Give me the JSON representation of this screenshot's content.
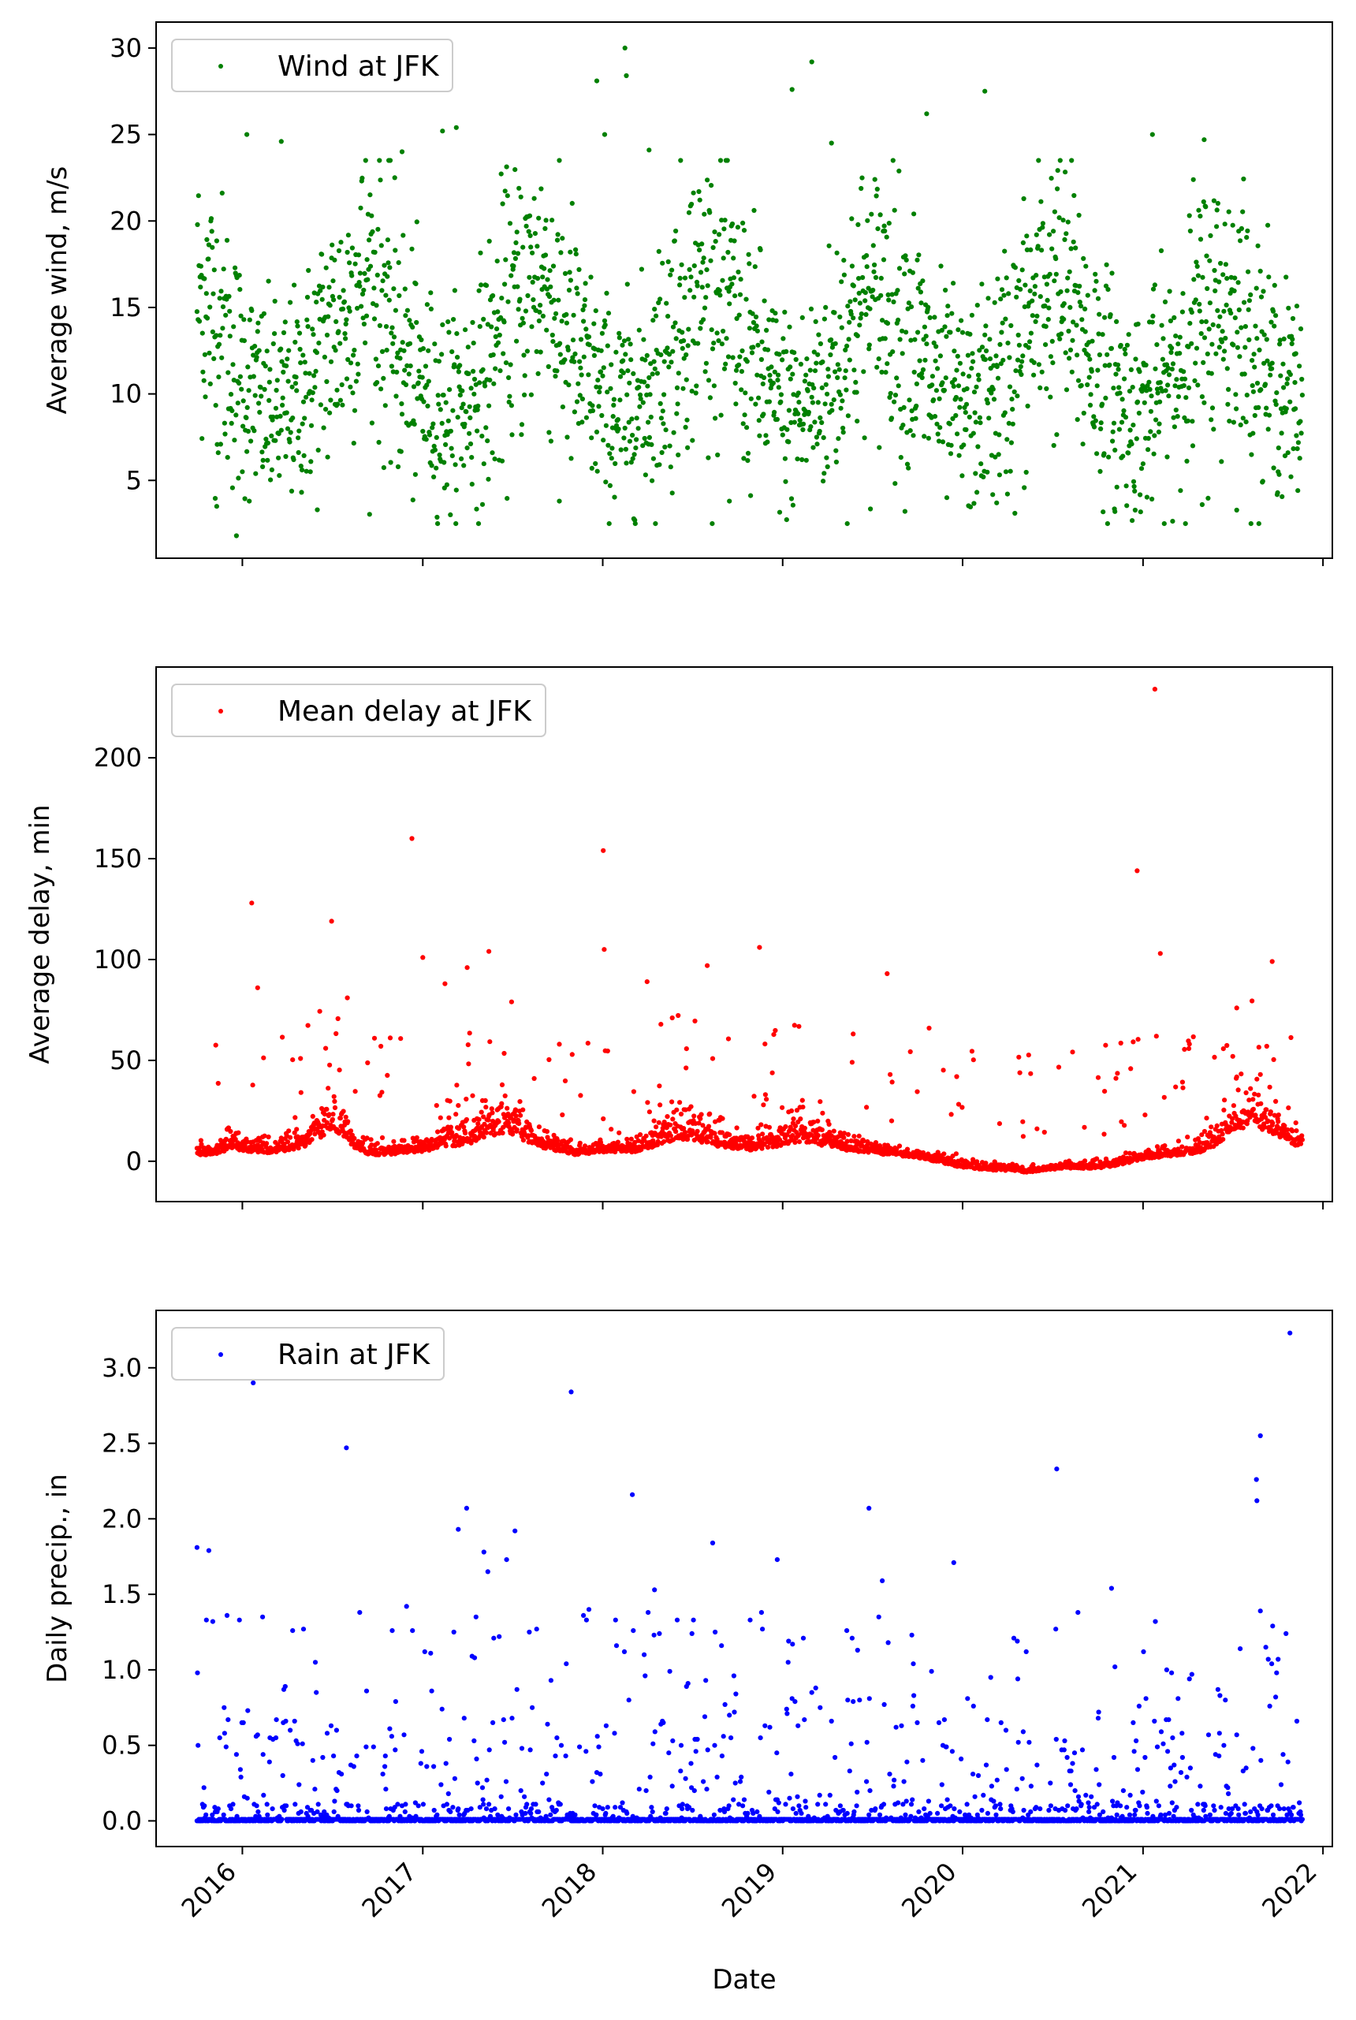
{
  "chart_data": [
    {
      "type": "scatter",
      "ylabel": "Average wind, m/s",
      "xlabel": "",
      "yticks": [
        5,
        10,
        15,
        20,
        25,
        30
      ],
      "ylim": [
        0.5,
        31.5
      ],
      "xlim": [
        "2015-07-10",
        "2022-01-20"
      ],
      "xticks": [
        "2016-01-01",
        "2017-01-01",
        "2018-01-01",
        "2019-01-01",
        "2020-01-01",
        "2021-01-01",
        "2022-01-01"
      ],
      "show_xticklabels": false,
      "grid": false,
      "legend_position": "upper-left",
      "series": [
        {
          "name": "Wind at JFK",
          "color": "#008000",
          "baseline": [
            16,
            15,
            13,
            11,
            10,
            9,
            9,
            10,
            11,
            13,
            14,
            16,
            17,
            15,
            13,
            11,
            10,
            9,
            9,
            10,
            11,
            13,
            15,
            16,
            17,
            15,
            13,
            11,
            10,
            9,
            9,
            10,
            11,
            13,
            15,
            16,
            16,
            15,
            13,
            12,
            10,
            9,
            9,
            10,
            11,
            13,
            15,
            15,
            16,
            14,
            13,
            11,
            10,
            9,
            9,
            10,
            11,
            12,
            14,
            16,
            16,
            15,
            13,
            11,
            10,
            9,
            9,
            10,
            11,
            13,
            14,
            15,
            15,
            14,
            12,
            11,
            10,
            9
          ],
          "spread": [
            4,
            4,
            4,
            3.5,
            3,
            3,
            3,
            3,
            3.5,
            4,
            4,
            4,
            4,
            4,
            4,
            3.5,
            3,
            3,
            3,
            3,
            3.5,
            4,
            4,
            4,
            4,
            4,
            4,
            3.5,
            3,
            3,
            3,
            3,
            3.5,
            4,
            4,
            4,
            4,
            4,
            4,
            3.5,
            3,
            3,
            3,
            3,
            3.5,
            4,
            4,
            4,
            4,
            4,
            4,
            3.5,
            3,
            3,
            3,
            3,
            3.5,
            4,
            4,
            4,
            4,
            4,
            4,
            3.5,
            3,
            3,
            3,
            3,
            3.5,
            4,
            4,
            4,
            4,
            4,
            3.5,
            3,
            3,
            3
          ],
          "outliers": [
            {
              "x": "2015-11-10",
              "y": 3.5
            },
            {
              "x": "2016-01-10",
              "y": 25.0
            },
            {
              "x": "2016-03-20",
              "y": 24.6
            },
            {
              "x": "2016-11-20",
              "y": 24.0
            },
            {
              "x": "2017-02-10",
              "y": 25.2
            },
            {
              "x": "2017-03-10",
              "y": 25.4
            },
            {
              "x": "2017-10-05",
              "y": 3.8
            },
            {
              "x": "2017-12-20",
              "y": 28.1
            },
            {
              "x": "2018-01-05",
              "y": 25.0
            },
            {
              "x": "2018-02-15",
              "y": 30.0
            },
            {
              "x": "2018-02-18",
              "y": 28.4
            },
            {
              "x": "2018-04-05",
              "y": 24.1
            },
            {
              "x": "2018-09-15",
              "y": 3.8
            },
            {
              "x": "2019-01-20",
              "y": 27.6
            },
            {
              "x": "2019-03-01",
              "y": 29.2
            },
            {
              "x": "2019-04-10",
              "y": 24.5
            },
            {
              "x": "2019-10-20",
              "y": 26.2
            },
            {
              "x": "2020-02-15",
              "y": 27.5
            },
            {
              "x": "2020-03-10",
              "y": 3.7
            },
            {
              "x": "2020-11-05",
              "y": 3.2
            },
            {
              "x": "2021-01-20",
              "y": 25.0
            },
            {
              "x": "2021-05-05",
              "y": 24.7
            },
            {
              "x": "2021-05-01",
              "y": 3.6
            },
            {
              "x": "2015-12-20",
              "y": 1.8
            }
          ]
        }
      ]
    },
    {
      "type": "scatter",
      "ylabel": "Average delay, min",
      "xlabel": "",
      "yticks": [
        0,
        50,
        100,
        150,
        200
      ],
      "ylim": [
        -20,
        245
      ],
      "xlim": [
        "2015-07-10",
        "2022-01-20"
      ],
      "xticks": [
        "2016-01-01",
        "2017-01-01",
        "2018-01-01",
        "2019-01-01",
        "2020-01-01",
        "2021-01-01",
        "2022-01-01"
      ],
      "show_xticklabels": false,
      "grid": false,
      "legend_position": "upper-left",
      "series": [
        {
          "name": "Mean delay at JFK",
          "color": "#ff0000",
          "baseline": [
            4,
            4,
            8,
            6,
            5,
            6,
            8,
            14,
            18,
            9,
            4,
            4,
            5,
            6,
            8,
            10,
            12,
            16,
            18,
            12,
            8,
            6,
            4,
            5,
            6,
            5,
            8,
            10,
            14,
            12,
            10,
            8,
            7,
            8,
            10,
            12,
            10,
            8,
            6,
            5,
            4,
            3,
            2,
            0,
            -2,
            -3,
            -4,
            -4,
            -5,
            -4,
            -3,
            -3,
            -3,
            -2,
            0,
            2,
            3,
            4,
            5,
            10,
            18,
            20,
            18,
            12,
            8
          ],
          "spread": [
            3,
            3,
            6,
            4,
            3,
            4,
            6,
            10,
            12,
            6,
            3,
            3,
            3,
            4,
            6,
            8,
            10,
            12,
            12,
            8,
            6,
            4,
            3,
            3,
            4,
            4,
            6,
            8,
            10,
            9,
            8,
            6,
            5,
            6,
            8,
            9,
            8,
            6,
            4,
            3,
            3,
            2,
            2,
            2,
            2,
            2,
            2,
            2,
            2,
            2,
            2,
            2,
            2,
            2,
            2,
            2,
            3,
            3,
            4,
            7,
            10,
            12,
            10,
            7,
            5
          ],
          "outliers": [
            {
              "x": "2016-01-20",
              "y": 128
            },
            {
              "x": "2016-02-01",
              "y": 86
            },
            {
              "x": "2016-06-30",
              "y": 119
            },
            {
              "x": "2016-08-01",
              "y": 81
            },
            {
              "x": "2016-12-10",
              "y": 160
            },
            {
              "x": "2017-01-01",
              "y": 101
            },
            {
              "x": "2017-02-15",
              "y": 88
            },
            {
              "x": "2017-04-01",
              "y": 96
            },
            {
              "x": "2017-05-15",
              "y": 104
            },
            {
              "x": "2017-06-30",
              "y": 79
            },
            {
              "x": "2017-10-05",
              "y": 58
            },
            {
              "x": "2018-01-02",
              "y": 154
            },
            {
              "x": "2018-01-04",
              "y": 105
            },
            {
              "x": "2018-04-01",
              "y": 89
            },
            {
              "x": "2018-08-01",
              "y": 97
            },
            {
              "x": "2018-11-15",
              "y": 106
            },
            {
              "x": "2019-08-01",
              "y": 93
            },
            {
              "x": "2019-10-25",
              "y": 66
            },
            {
              "x": "2020-12-20",
              "y": 144
            },
            {
              "x": "2021-01-25",
              "y": 234
            },
            {
              "x": "2021-02-05",
              "y": 103
            },
            {
              "x": "2021-01-28",
              "y": 62
            },
            {
              "x": "2021-09-20",
              "y": 99
            },
            {
              "x": "2021-07-10",
              "y": 76
            }
          ]
        }
      ]
    },
    {
      "type": "scatter",
      "ylabel": "Daily precip., in",
      "xlabel": "Date",
      "yticks": [
        0.0,
        0.5,
        1.0,
        1.5,
        2.0,
        2.5,
        3.0
      ],
      "ytick_labels": [
        "0.0",
        "0.5",
        "1.0",
        "1.5",
        "2.0",
        "2.5",
        "3.0"
      ],
      "ylim": [
        -0.17,
        3.38
      ],
      "xlim": [
        "2015-07-10",
        "2022-01-20"
      ],
      "xticks": [
        "2016-01-01",
        "2017-01-01",
        "2018-01-01",
        "2019-01-01",
        "2020-01-01",
        "2021-01-01",
        "2022-01-01"
      ],
      "xtick_labels": [
        "2016",
        "2017",
        "2018",
        "2019",
        "2020",
        "2021",
        "2022"
      ],
      "show_xticklabels": true,
      "grid": false,
      "legend_position": "upper-left",
      "series": [
        {
          "name": "Rain at JFK",
          "color": "#0000ff",
          "outliers": [
            {
              "x": "2015-10-01",
              "y": 1.81
            },
            {
              "x": "2015-10-25",
              "y": 1.79
            },
            {
              "x": "2016-01-23",
              "y": 2.9
            },
            {
              "x": "2016-07-30",
              "y": 2.47
            },
            {
              "x": "2016-11-29",
              "y": 1.42
            },
            {
              "x": "2017-03-14",
              "y": 1.93
            },
            {
              "x": "2017-03-31",
              "y": 2.07
            },
            {
              "x": "2017-05-05",
              "y": 1.78
            },
            {
              "x": "2017-05-13",
              "y": 1.65
            },
            {
              "x": "2017-06-20",
              "y": 1.73
            },
            {
              "x": "2017-07-07",
              "y": 1.92
            },
            {
              "x": "2017-10-29",
              "y": 2.84
            },
            {
              "x": "2018-03-02",
              "y": 2.16
            },
            {
              "x": "2018-04-16",
              "y": 1.53
            },
            {
              "x": "2018-08-12",
              "y": 1.84
            },
            {
              "x": "2018-12-21",
              "y": 1.73
            },
            {
              "x": "2019-06-25",
              "y": 2.07
            },
            {
              "x": "2019-07-22",
              "y": 1.59
            },
            {
              "x": "2019-12-14",
              "y": 1.71
            },
            {
              "x": "2020-07-10",
              "y": 2.33
            },
            {
              "x": "2020-10-29",
              "y": 1.54
            },
            {
              "x": "2021-01-26",
              "y": 1.32
            },
            {
              "x": "2021-08-19",
              "y": 2.26
            },
            {
              "x": "2021-08-20",
              "y": 2.12
            },
            {
              "x": "2021-08-27",
              "y": 2.55
            },
            {
              "x": "2021-10-26",
              "y": 3.23
            }
          ]
        }
      ]
    }
  ]
}
